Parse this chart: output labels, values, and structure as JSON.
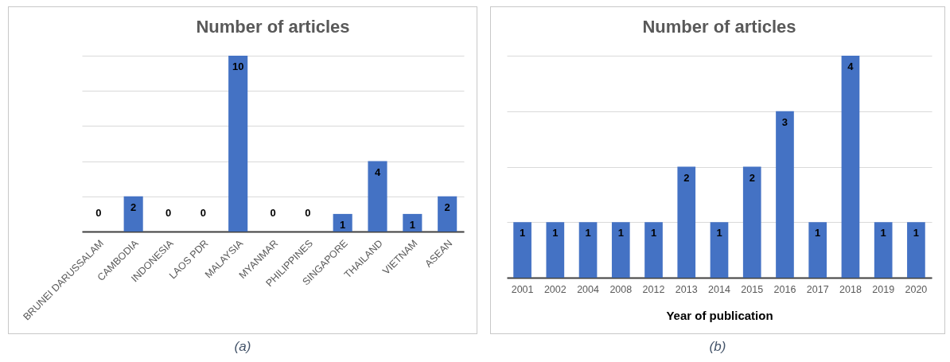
{
  "chart_data": [
    {
      "type": "bar",
      "title": "Number of articles",
      "categories": [
        "BRUNEI DARUSSALAM",
        "CAMBODIA",
        "INDONESIA",
        "LAOS PDR",
        "MALAYSIA",
        "MYANMAR",
        "PHILIPPINES",
        "SINGAPORE",
        "THAILAND",
        "VIETNAM",
        "ASEAN"
      ],
      "values": [
        0,
        2,
        0,
        0,
        10,
        0,
        0,
        1,
        4,
        1,
        2
      ],
      "color": "#4472c4",
      "ylim": [
        0,
        10
      ],
      "yticks": [
        {
          "value": 0,
          "label": null
        },
        {
          "value": 2,
          "label": null
        },
        {
          "value": 4,
          "label": null
        },
        {
          "value": 6,
          "label": null
        },
        {
          "value": 8,
          "label": null
        },
        {
          "value": 10,
          "label": null
        }
      ],
      "grid": "y",
      "tick_labels": "x",
      "data_labels": true,
      "annotations": [
        "(a)"
      ]
    },
    {
      "type": "bar",
      "title": "Number of articles",
      "xlabel": "Year of publication",
      "categories": [
        "2001",
        "2002",
        "2004",
        "2008",
        "2012",
        "2013",
        "2014",
        "2015",
        "2016",
        "2017",
        "2018",
        "2019",
        "2020"
      ],
      "values": [
        1,
        1,
        1,
        1,
        1,
        2,
        1,
        2,
        3,
        1,
        4,
        1,
        1
      ],
      "color": "#4472c4",
      "ylim": [
        0,
        4
      ],
      "yticks": [
        {
          "value": 0,
          "label": null
        },
        {
          "value": 1,
          "label": null
        },
        {
          "value": 2,
          "label": null
        },
        {
          "value": 3,
          "label": null
        },
        {
          "value": 4,
          "label": null
        }
      ],
      "grid": "y",
      "tick_labels": "x",
      "data_labels": true,
      "annotations": [
        "(b)"
      ]
    }
  ]
}
